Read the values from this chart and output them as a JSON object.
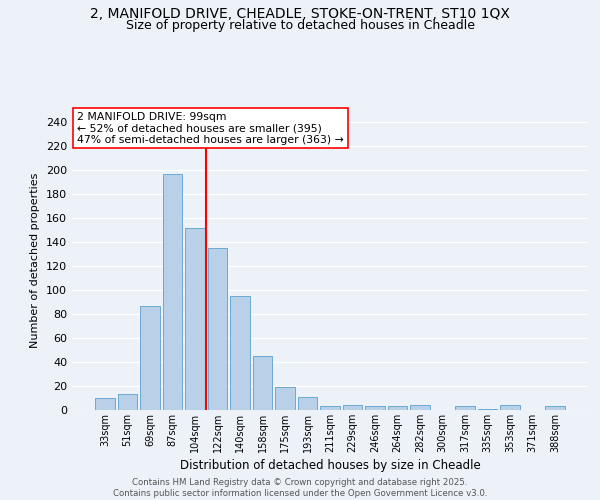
{
  "title1": "2, MANIFOLD DRIVE, CHEADLE, STOKE-ON-TRENT, ST10 1QX",
  "title2": "Size of property relative to detached houses in Cheadle",
  "xlabel": "Distribution of detached houses by size in Cheadle",
  "ylabel": "Number of detached properties",
  "categories": [
    "33sqm",
    "51sqm",
    "69sqm",
    "87sqm",
    "104sqm",
    "122sqm",
    "140sqm",
    "158sqm",
    "175sqm",
    "193sqm",
    "211sqm",
    "229sqm",
    "246sqm",
    "264sqm",
    "282sqm",
    "300sqm",
    "317sqm",
    "335sqm",
    "353sqm",
    "371sqm",
    "388sqm"
  ],
  "values": [
    10,
    13,
    87,
    197,
    152,
    135,
    95,
    45,
    19,
    11,
    3,
    4,
    3,
    3,
    4,
    0,
    3,
    1,
    4,
    0,
    3
  ],
  "bar_color": "#b8d0e8",
  "bar_edge_color": "#6aaad4",
  "red_line_x": 4.5,
  "red_line_label": "2 MANIFOLD DRIVE: 99sqm",
  "annotation_line1": "← 52% of detached houses are smaller (395)",
  "annotation_line2": "47% of semi-detached houses are larger (363) →",
  "ylim": [
    0,
    250
  ],
  "yticks": [
    0,
    20,
    40,
    60,
    80,
    100,
    120,
    140,
    160,
    180,
    200,
    220,
    240
  ],
  "footer1": "Contains HM Land Registry data © Crown copyright and database right 2025.",
  "footer2": "Contains public sector information licensed under the Open Government Licence v3.0.",
  "bg_color": "#edf2f9",
  "grid_color": "#ffffff",
  "title_fontsize": 10,
  "subtitle_fontsize": 9
}
